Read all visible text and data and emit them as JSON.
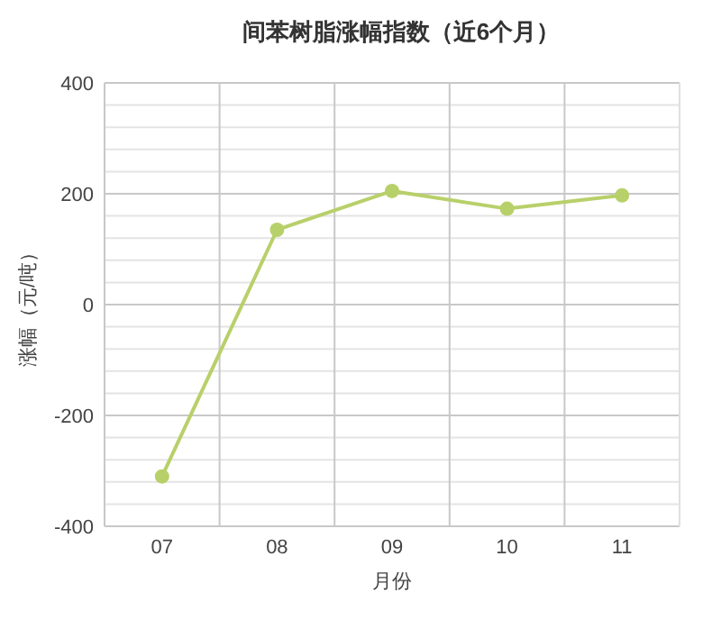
{
  "chart_data": {
    "type": "line",
    "title": "间苯树脂涨幅指数（近6个月）",
    "xlabel": "月份",
    "ylabel": "涨幅（元/吨）",
    "categories": [
      "07",
      "08",
      "09",
      "10",
      "11"
    ],
    "series": [
      {
        "color": "#b8d06a",
        "values": [
          -310,
          135,
          205,
          173,
          197
        ]
      }
    ],
    "ylim": [
      -400,
      400
    ],
    "yticks": [
      -400,
      -200,
      0,
      200,
      400
    ],
    "grid": true,
    "marker": "circle",
    "line_style": "solid"
  }
}
